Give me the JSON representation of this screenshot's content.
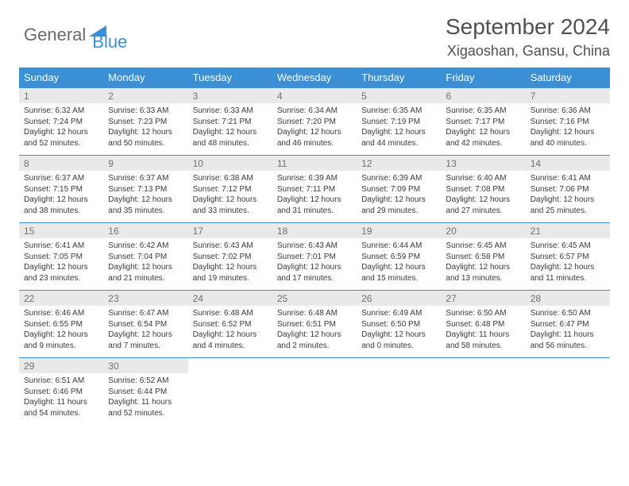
{
  "brand": {
    "part1": "General",
    "part2": "Blue"
  },
  "header": {
    "title": "September 2024",
    "location": "Xigaoshan, Gansu, China"
  },
  "style": {
    "accent": "#3b8fd4",
    "header_bg": "#3b8fd4",
    "header_text": "#ffffff",
    "daynum_bg": "#e9e9e9",
    "body_bg": "#ffffff",
    "text_color": "#3a3a3a",
    "title_fontsize": 28,
    "location_fontsize": 18,
    "dow_fontsize": 13,
    "daynum_fontsize": 12,
    "detail_fontsize": 10
  },
  "dow": [
    "Sunday",
    "Monday",
    "Tuesday",
    "Wednesday",
    "Thursday",
    "Friday",
    "Saturday"
  ],
  "weeks": [
    [
      {
        "n": "1",
        "r": "6:32 AM",
        "s": "7:24 PM",
        "d": "12 hours and 52 minutes."
      },
      {
        "n": "2",
        "r": "6:33 AM",
        "s": "7:23 PM",
        "d": "12 hours and 50 minutes."
      },
      {
        "n": "3",
        "r": "6:33 AM",
        "s": "7:21 PM",
        "d": "12 hours and 48 minutes."
      },
      {
        "n": "4",
        "r": "6:34 AM",
        "s": "7:20 PM",
        "d": "12 hours and 46 minutes."
      },
      {
        "n": "5",
        "r": "6:35 AM",
        "s": "7:19 PM",
        "d": "12 hours and 44 minutes."
      },
      {
        "n": "6",
        "r": "6:35 AM",
        "s": "7:17 PM",
        "d": "12 hours and 42 minutes."
      },
      {
        "n": "7",
        "r": "6:36 AM",
        "s": "7:16 PM",
        "d": "12 hours and 40 minutes."
      }
    ],
    [
      {
        "n": "8",
        "r": "6:37 AM",
        "s": "7:15 PM",
        "d": "12 hours and 38 minutes."
      },
      {
        "n": "9",
        "r": "6:37 AM",
        "s": "7:13 PM",
        "d": "12 hours and 35 minutes."
      },
      {
        "n": "10",
        "r": "6:38 AM",
        "s": "7:12 PM",
        "d": "12 hours and 33 minutes."
      },
      {
        "n": "11",
        "r": "6:39 AM",
        "s": "7:11 PM",
        "d": "12 hours and 31 minutes."
      },
      {
        "n": "12",
        "r": "6:39 AM",
        "s": "7:09 PM",
        "d": "12 hours and 29 minutes."
      },
      {
        "n": "13",
        "r": "6:40 AM",
        "s": "7:08 PM",
        "d": "12 hours and 27 minutes."
      },
      {
        "n": "14",
        "r": "6:41 AM",
        "s": "7:06 PM",
        "d": "12 hours and 25 minutes."
      }
    ],
    [
      {
        "n": "15",
        "r": "6:41 AM",
        "s": "7:05 PM",
        "d": "12 hours and 23 minutes."
      },
      {
        "n": "16",
        "r": "6:42 AM",
        "s": "7:04 PM",
        "d": "12 hours and 21 minutes."
      },
      {
        "n": "17",
        "r": "6:43 AM",
        "s": "7:02 PM",
        "d": "12 hours and 19 minutes."
      },
      {
        "n": "18",
        "r": "6:43 AM",
        "s": "7:01 PM",
        "d": "12 hours and 17 minutes."
      },
      {
        "n": "19",
        "r": "6:44 AM",
        "s": "6:59 PM",
        "d": "12 hours and 15 minutes."
      },
      {
        "n": "20",
        "r": "6:45 AM",
        "s": "6:58 PM",
        "d": "12 hours and 13 minutes."
      },
      {
        "n": "21",
        "r": "6:45 AM",
        "s": "6:57 PM",
        "d": "12 hours and 11 minutes."
      }
    ],
    [
      {
        "n": "22",
        "r": "6:46 AM",
        "s": "6:55 PM",
        "d": "12 hours and 9 minutes."
      },
      {
        "n": "23",
        "r": "6:47 AM",
        "s": "6:54 PM",
        "d": "12 hours and 7 minutes."
      },
      {
        "n": "24",
        "r": "6:48 AM",
        "s": "6:52 PM",
        "d": "12 hours and 4 minutes."
      },
      {
        "n": "25",
        "r": "6:48 AM",
        "s": "6:51 PM",
        "d": "12 hours and 2 minutes."
      },
      {
        "n": "26",
        "r": "6:49 AM",
        "s": "6:50 PM",
        "d": "12 hours and 0 minutes."
      },
      {
        "n": "27",
        "r": "6:50 AM",
        "s": "6:48 PM",
        "d": "11 hours and 58 minutes."
      },
      {
        "n": "28",
        "r": "6:50 AM",
        "s": "6:47 PM",
        "d": "11 hours and 56 minutes."
      }
    ],
    [
      {
        "n": "29",
        "r": "6:51 AM",
        "s": "6:46 PM",
        "d": "11 hours and 54 minutes."
      },
      {
        "n": "30",
        "r": "6:52 AM",
        "s": "6:44 PM",
        "d": "11 hours and 52 minutes."
      },
      null,
      null,
      null,
      null,
      null
    ]
  ],
  "labels": {
    "sunrise": "Sunrise:",
    "sunset": "Sunset:",
    "daylight": "Daylight:"
  }
}
